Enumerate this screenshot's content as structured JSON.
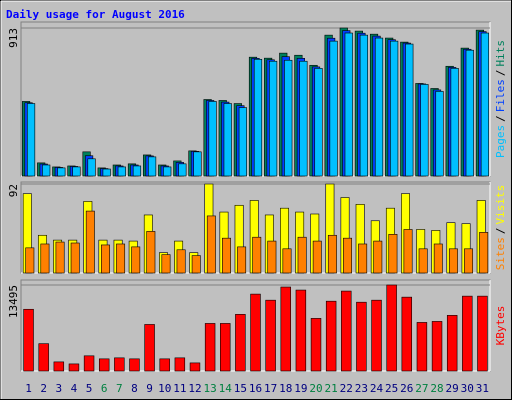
{
  "chart_data": [
    {
      "type": "bar3d",
      "title": "Daily usage for August 2016",
      "legend_separator": "/",
      "ylim": [
        0,
        913
      ],
      "yticks": [
        913
      ],
      "series": [
        {
          "name": "Hits",
          "color": "#00805c",
          "values": [
            460,
            81,
            56,
            62,
            149,
            50,
            68,
            75,
            130,
            68,
            93,
            155,
            472,
            466,
            447,
            733,
            727,
            758,
            745,
            683,
            869,
            913,
            894,
            875,
            851,
            826,
            571,
            540,
            677,
            789,
            900
          ]
        },
        {
          "name": "Files",
          "color": "#0040ff",
          "values": [
            452,
            74,
            53,
            59,
            125,
            46,
            62,
            68,
            124,
            62,
            84,
            152,
            466,
            456,
            434,
            726,
            717,
            736,
            726,
            673,
            850,
            897,
            881,
            863,
            841,
            820,
            568,
            531,
            670,
            782,
            891
          ]
        },
        {
          "name": "Pages",
          "color": "#00c0ff",
          "values": [
            447,
            68,
            50,
            56,
            106,
            43,
            56,
            62,
            118,
            56,
            75,
            149,
            460,
            447,
            422,
            720,
            708,
            714,
            708,
            664,
            832,
            882,
            869,
            851,
            832,
            814,
            565,
            522,
            664,
            776,
            882
          ]
        }
      ]
    },
    {
      "type": "bar2",
      "legend_separator": "/",
      "ylim": [
        0,
        92
      ],
      "yticks": [
        92
      ],
      "series": [
        {
          "name": "Visits",
          "color": "#ffff00",
          "values": [
            82,
            39,
            34,
            34,
            74,
            34,
            34,
            33,
            60,
            21,
            33,
            21,
            92,
            63,
            70,
            75,
            60,
            67,
            63,
            61,
            92,
            78,
            71,
            54,
            67,
            82,
            45,
            44,
            52,
            51,
            75
          ]
        },
        {
          "name": "Sites",
          "color": "#ff8000",
          "values": [
            26,
            30,
            32,
            31,
            64,
            29,
            30,
            27,
            43,
            19,
            24,
            18,
            59,
            36,
            27,
            37,
            33,
            25,
            37,
            33,
            39,
            36,
            30,
            33,
            40,
            45,
            25,
            30,
            25,
            25,
            42
          ]
        }
      ]
    },
    {
      "type": "bar",
      "ylim": [
        0,
        13495
      ],
      "yticks": [
        13495
      ],
      "categories": [
        "1",
        "2",
        "3",
        "4",
        "5",
        "6",
        "7",
        "8",
        "9",
        "10",
        "11",
        "12",
        "13",
        "14",
        "15",
        "16",
        "17",
        "18",
        "19",
        "20",
        "21",
        "22",
        "23",
        "24",
        "25",
        "26",
        "27",
        "28",
        "29",
        "30",
        "31"
      ],
      "category_colors": [
        "#000080",
        "#000080",
        "#000080",
        "#000080",
        "#000080",
        "#008040",
        "#008040",
        "#000080",
        "#000080",
        "#000080",
        "#000080",
        "#000080",
        "#008040",
        "#008040",
        "#000080",
        "#000080",
        "#000080",
        "#000080",
        "#000080",
        "#008040",
        "#008040",
        "#000080",
        "#000080",
        "#000080",
        "#000080",
        "#000080",
        "#008040",
        "#008040",
        "#000080",
        "#000080",
        "#000080"
      ],
      "series": [
        {
          "name": "KBytes",
          "color": "#ff0000",
          "values": [
            9687,
            4288,
            1429,
            1112,
            2382,
            1906,
            2064,
            1906,
            7305,
            1906,
            2064,
            1270,
            7464,
            7464,
            8893,
            12066,
            11113,
            13177,
            12701,
            8258,
            10955,
            12542,
            10796,
            11113,
            13495,
            11590,
            7622,
            7781,
            8734,
            11748,
            11748
          ]
        }
      ]
    }
  ]
}
